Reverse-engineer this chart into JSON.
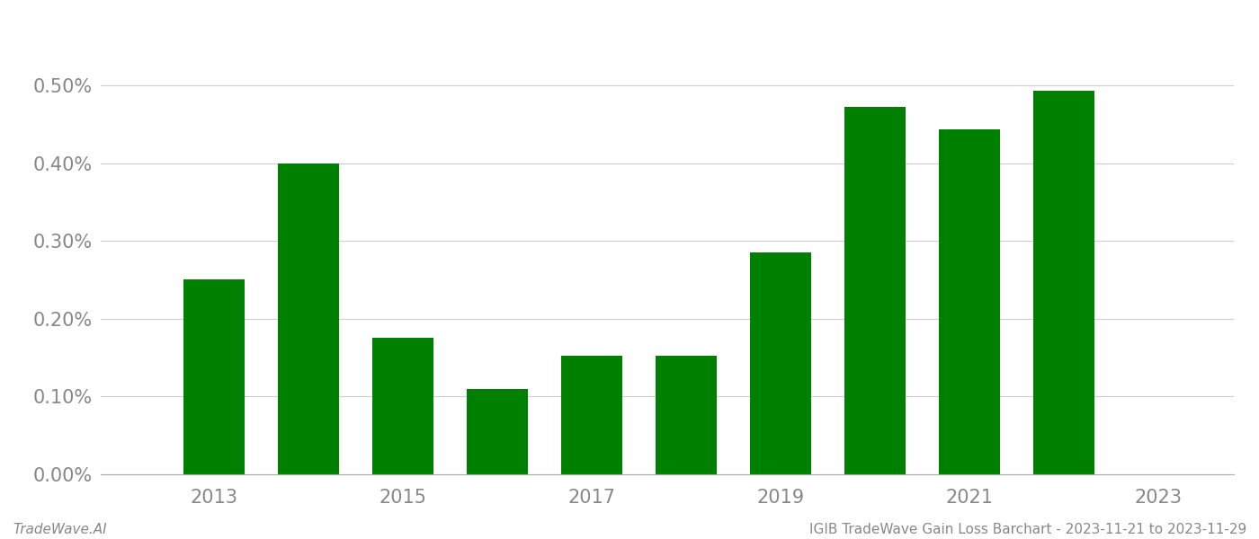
{
  "years": [
    2013,
    2014,
    2015,
    2016,
    2017,
    2018,
    2019,
    2020,
    2021,
    2022
  ],
  "values": [
    0.0025,
    0.004,
    0.00175,
    0.0011,
    0.00152,
    0.00152,
    0.00285,
    0.00472,
    0.00443,
    0.00493
  ],
  "bar_color": "#008000",
  "ylim": [
    0,
    0.00575
  ],
  "yticks": [
    0.0,
    0.001,
    0.002,
    0.003,
    0.004,
    0.005
  ],
  "xtick_labels": [
    "2013",
    "2015",
    "2017",
    "2019",
    "2021",
    "2023"
  ],
  "xtick_positions": [
    2013,
    2015,
    2017,
    2019,
    2021,
    2023
  ],
  "footer_left": "TradeWave.AI",
  "footer_right": "IGIB TradeWave Gain Loss Barchart - 2023-11-21 to 2023-11-29",
  "background_color": "#ffffff",
  "grid_color": "#cccccc",
  "tick_label_color": "#888888",
  "footer_color": "#888888",
  "bar_width": 0.65,
  "xlim_left": 2011.8,
  "xlim_right": 2023.8
}
